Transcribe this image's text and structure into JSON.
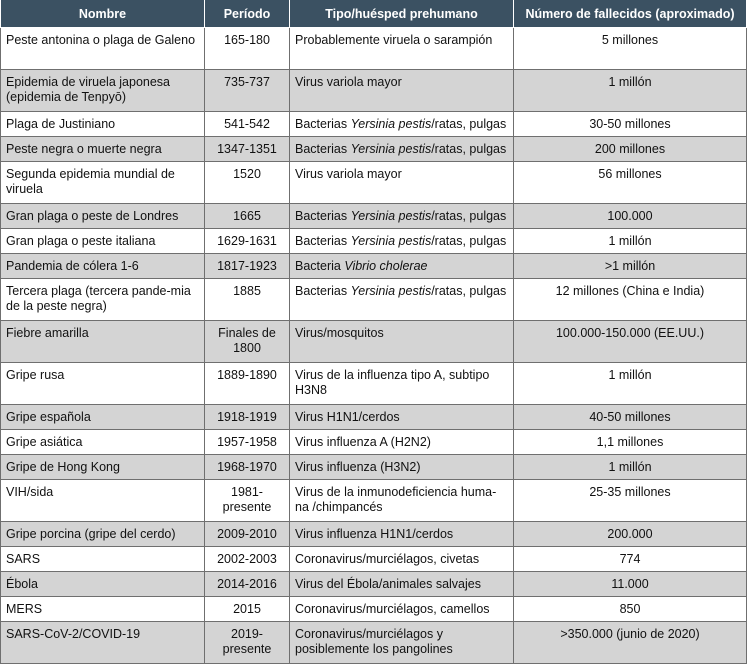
{
  "headers": [
    "Nombre",
    "Período",
    "Tipo/huésped prehumano",
    "Número de fallecidos (aproximado)"
  ],
  "rows": [
    {
      "name": "Peste antonina o plaga de Galeno",
      "period": "165-180",
      "type_pre": "Probablemente viruela o sarampión",
      "type_italic": "",
      "type_post": "",
      "deaths": "5 millones"
    },
    {
      "name": "Epidemia de viruela japonesa (epidemia de Tenpyō)",
      "period": "735-737",
      "type_pre": "Virus variola mayor",
      "type_italic": "",
      "type_post": "",
      "deaths": "1 millón"
    },
    {
      "name": "Plaga de Justiniano",
      "period": "541-542",
      "type_pre": "Bacterias ",
      "type_italic": "Yersinia pestis",
      "type_post": "/ratas, pulgas",
      "deaths": "30-50 millones"
    },
    {
      "name": "Peste negra o muerte negra",
      "period": "1347-1351",
      "type_pre": "Bacterias ",
      "type_italic": "Yersinia pestis",
      "type_post": "/ratas, pulgas",
      "deaths": "200 millones"
    },
    {
      "name": "Segunda epidemia mundial de viruela",
      "period": "1520",
      "type_pre": "Virus variola mayor",
      "type_italic": "",
      "type_post": "",
      "deaths": "56 millones"
    },
    {
      "name": "Gran plaga o peste de Londres",
      "period": "1665",
      "type_pre": "Bacterias ",
      "type_italic": "Yersinia pestis",
      "type_post": "/ratas, pulgas",
      "deaths": "100.000"
    },
    {
      "name": "Gran plaga o peste italiana",
      "period": "1629-1631",
      "type_pre": "Bacterias ",
      "type_italic": "Yersinia pestis",
      "type_post": "/ratas, pulgas",
      "deaths": "1 millón"
    },
    {
      "name": "Pandemia de cólera 1-6",
      "period": "1817-1923",
      "type_pre": "Bacteria ",
      "type_italic": "Vibrio cholerae",
      "type_post": "",
      "deaths": ">1 millón"
    },
    {
      "name": "Tercera plaga (tercera pande-mia de la peste negra)",
      "period": "1885",
      "type_pre": "Bacterias ",
      "type_italic": "Yersinia pestis",
      "type_post": "/ratas, pulgas",
      "deaths": "12 millones (China e India)"
    },
    {
      "name": "Fiebre amarilla",
      "period": "Finales de 1800",
      "type_pre": "Virus/mosquitos",
      "type_italic": "",
      "type_post": "",
      "deaths": "100.000-150.000 (EE.UU.)"
    },
    {
      "name": "Gripe rusa",
      "period": "1889-1890",
      "type_pre": "Virus de la influenza tipo A, subtipo H3N8",
      "type_italic": "",
      "type_post": "",
      "deaths": "1 millón"
    },
    {
      "name": "Gripe española",
      "period": "1918-1919",
      "type_pre": "Virus H1N1/cerdos",
      "type_italic": "",
      "type_post": "",
      "deaths": "40-50 millones"
    },
    {
      "name": "Gripe asiática",
      "period": "1957-1958",
      "type_pre": "Virus influenza A (H2N2)",
      "type_italic": "",
      "type_post": "",
      "deaths": "1,1 millones"
    },
    {
      "name": "Gripe de Hong Kong",
      "period": "1968-1970",
      "type_pre": "Virus influenza (H3N2)",
      "type_italic": "",
      "type_post": "",
      "deaths": "1 millón"
    },
    {
      "name": "VIH/sida",
      "period": "1981-presente",
      "type_pre": "Virus de la inmunodeficiencia huma-na /chimpancés",
      "type_italic": "",
      "type_post": "",
      "deaths": "25-35 millones"
    },
    {
      "name": "Gripe porcina (gripe del cerdo)",
      "period": "2009-2010",
      "type_pre": "Virus influenza H1N1/cerdos",
      "type_italic": "",
      "type_post": "",
      "deaths": "200.000"
    },
    {
      "name": "SARS",
      "period": "2002-2003",
      "type_pre": "Coronavirus/murciélagos, civetas",
      "type_italic": "",
      "type_post": "",
      "deaths": "774"
    },
    {
      "name": "Ébola",
      "period": "2014-2016",
      "type_pre": "Virus del Ébola/animales salvajes",
      "type_italic": "",
      "type_post": "",
      "deaths": "11.000"
    },
    {
      "name": "MERS",
      "period": "2015",
      "type_pre": "Coronavirus/murciélagos, camellos",
      "type_italic": "",
      "type_post": "",
      "deaths": "850"
    },
    {
      "name": "SARS-CoV-2/COVID-19",
      "period": "2019-presente",
      "type_pre": "Coronavirus/murciélagos y posiblemente los pangolines",
      "type_italic": "",
      "type_post": "",
      "deaths": ">350.000 (junio de 2020)"
    }
  ]
}
